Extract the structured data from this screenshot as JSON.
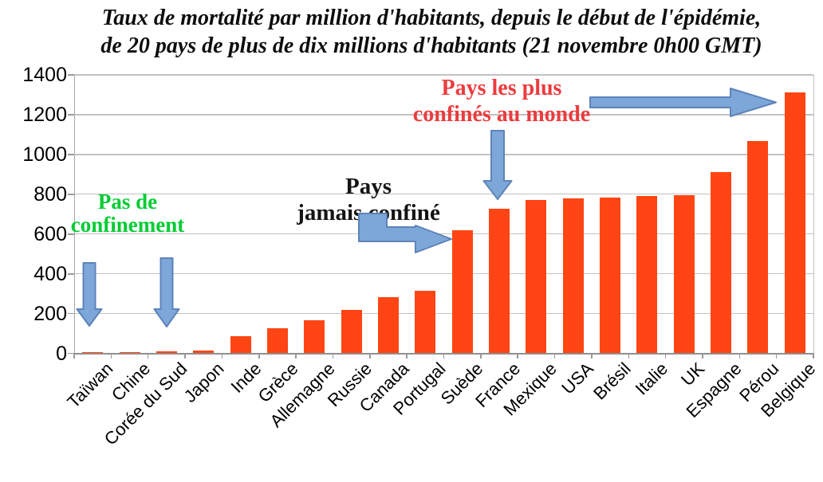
{
  "title": {
    "line1": "Taux de mortalité par million d'habitants, depuis le début de l'épidémie,",
    "line2": "de 20 pays de plus de dix millions d'habitants (21 novembre 0h00 GMT)"
  },
  "chart_data": {
    "type": "bar",
    "title": "Taux de mortalité par million d'habitants, depuis le début de l'épidémie, de 20 pays de plus de dix millions d'habitants (21 novembre 0h00 GMT)",
    "categories": [
      "Taïwan",
      "Chine",
      "Corée du Sud",
      "Japon",
      "Inde",
      "Grèce",
      "Allemagne",
      "Russie",
      "Canada",
      "Portugal",
      "Suède",
      "France",
      "Mexique",
      "USA",
      "Brésil",
      "Italie",
      "UK",
      "Espagne",
      "Pérou",
      "Belgique"
    ],
    "values": [
      3,
      6,
      10,
      15,
      88,
      125,
      166,
      220,
      283,
      316,
      620,
      728,
      773,
      778,
      784,
      790,
      797,
      913,
      1068,
      1312
    ],
    "xlabel": "",
    "ylabel": "",
    "ylim": [
      0,
      1400
    ],
    "yticks": [
      0,
      200,
      400,
      600,
      800,
      1000,
      1200,
      1400
    ],
    "grid": true,
    "legend": "none",
    "bar_color": "#FF4513",
    "annotations": [
      {
        "lines": [
          "Pas de",
          "confinement"
        ],
        "color": "#00CC33",
        "points_to": [
          "Taïwan",
          "Corée du Sud"
        ]
      },
      {
        "lines": [
          "Pays",
          "jamais confiné"
        ],
        "color": "#141414",
        "points_to": [
          "Suède"
        ]
      },
      {
        "lines": [
          "Pays les plus",
          "confinés au monde"
        ],
        "color": "#EC3B3E",
        "points_to": [
          "France",
          "Belgique"
        ]
      }
    ],
    "arrow_fill": "#7DA7D9",
    "arrow_stroke": "#5E83B8"
  }
}
